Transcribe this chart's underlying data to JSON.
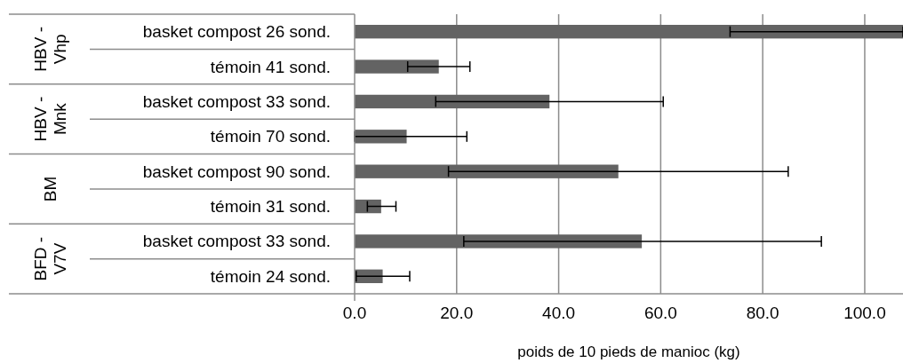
{
  "chart_data": {
    "type": "bar",
    "orientation": "horizontal",
    "xlabel": "poids de 10 pieds de manioc (kg)",
    "categories": [
      "basket compost 26 sond.",
      "témoin 41 sond.",
      "basket compost 33 sond.",
      "témoin 70 sond.",
      "basket compost 90 sond.",
      "témoin 31 sond.",
      "basket compost 33 sond.",
      "témoin 24 sond."
    ],
    "annotations": [
      "HBV - Vhp",
      "HBV - Mnk",
      "BM",
      "BFD - V7V"
    ],
    "values": [
      107.5,
      16.5,
      38.2,
      10.2,
      51.7,
      5.2,
      56.3,
      5.5
    ],
    "errors": [
      [
        73.6,
        107.5
      ],
      [
        10.4,
        22.6
      ],
      [
        15.9,
        60.5
      ],
      [
        0,
        22.0
      ],
      [
        18.4,
        85.0
      ],
      [
        2.5,
        8.1
      ],
      [
        21.4,
        91.5
      ],
      [
        0.3,
        10.8
      ]
    ],
    "color": "#636363",
    "xlim": [
      0,
      107.5
    ],
    "xticks": [
      {
        "value": 0,
        "label": "0.0"
      },
      {
        "value": 20,
        "label": "20.0"
      },
      {
        "value": 40,
        "label": "40.0"
      },
      {
        "value": 60,
        "label": "60.0"
      },
      {
        "value": 80,
        "label": "80.0"
      },
      {
        "value": 100,
        "label": "100.0"
      }
    ],
    "grid": "x"
  }
}
